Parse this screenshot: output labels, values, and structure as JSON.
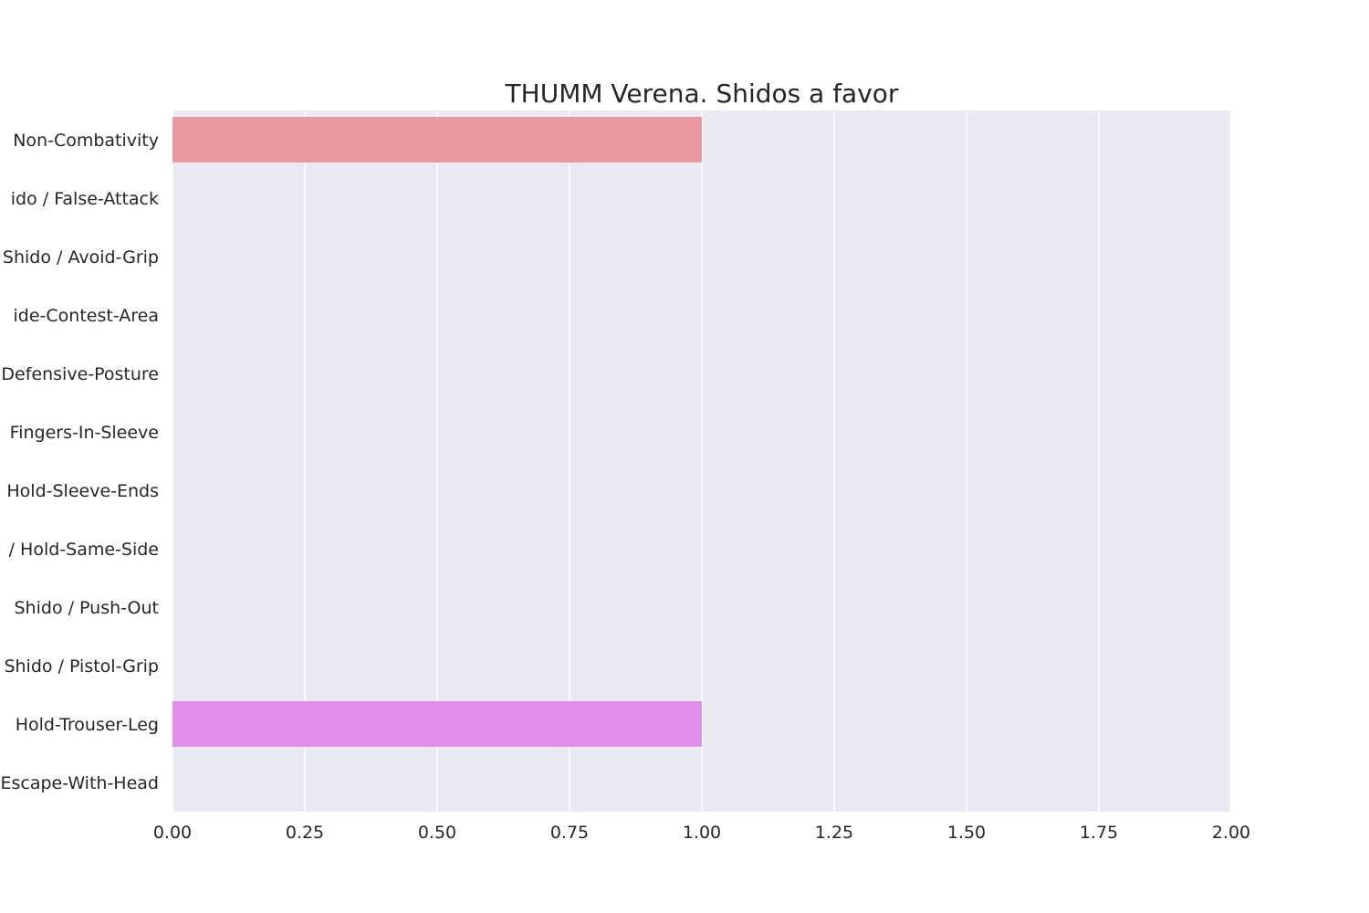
{
  "chart_data": {
    "type": "bar",
    "orientation": "horizontal",
    "title": "THUMM Verena. Shidos a favor",
    "xlabel": "",
    "ylabel": "",
    "xlim": [
      0,
      2
    ],
    "xticks": [
      "0.00",
      "0.25",
      "0.50",
      "0.75",
      "1.00",
      "1.25",
      "1.50",
      "1.75",
      "2.00"
    ],
    "categories": [
      "Non-Combativity",
      "ido / False-Attack",
      "Shido / Avoid-Grip",
      "ide-Contest-Area",
      "Defensive-Posture",
      "Fingers-In-Sleeve",
      "Hold-Sleeve-Ends",
      "/ Hold-Same-Side",
      "Shido / Push-Out",
      "Shido / Pistol-Grip",
      "Hold-Trouser-Leg",
      "Escape-With-Head"
    ],
    "values": [
      1,
      0,
      0,
      0,
      0,
      0,
      0,
      0,
      0,
      0,
      1,
      0
    ],
    "colors": [
      "#ea96a3",
      "#e39866",
      "#c8a459",
      "#a8ad56",
      "#87b557",
      "#59b66a",
      "#5cb49a",
      "#5eb1b0",
      "#60adc4",
      "#78a6e9",
      "#e08ce9",
      "#e98ac3"
    ],
    "grid": true,
    "background": "#eaeaf2",
    "gridline_color": "#ffffff"
  }
}
